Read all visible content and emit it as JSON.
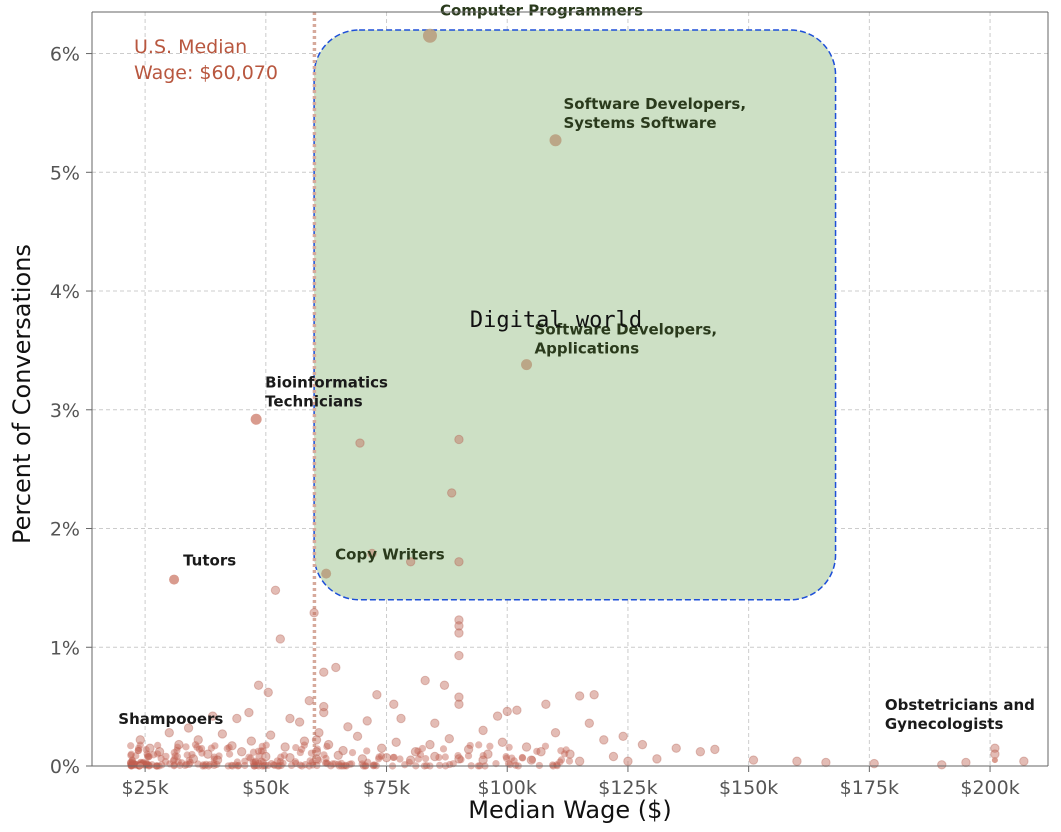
{
  "chart_data": {
    "type": "scatter",
    "xlabel": "Median Wage ($)",
    "ylabel": "Percent of Conversations",
    "xlim": [
      14000,
      212000
    ],
    "ylim": [
      0,
      6.35
    ],
    "x_ticks": [
      25000,
      50000,
      75000,
      100000,
      125000,
      150000,
      175000,
      200000
    ],
    "x_tick_labels": [
      "$25k",
      "$50k",
      "$75k",
      "$100k",
      "$125k",
      "$150k",
      "$175k",
      "$200k"
    ],
    "y_ticks": [
      0,
      1,
      2,
      3,
      4,
      5,
      6
    ],
    "y_tick_labels": [
      "0%",
      "1%",
      "2%",
      "3%",
      "4%",
      "5%",
      "6%"
    ],
    "grid": true,
    "reference_line": {
      "x": 60070,
      "label_line1": "U.S. Median",
      "label_line2": "Wage: $60,070"
    },
    "region": {
      "label": "Digital world",
      "x_range": [
        60000,
        168000
      ],
      "y_range": [
        1.4,
        6.35
      ]
    },
    "labeled_points": [
      {
        "label_lines": [
          "Computer Programmers"
        ],
        "x": 84000,
        "y": 6.15,
        "size": 7
      },
      {
        "label_lines": [
          "Software Developers,",
          "Systems Software"
        ],
        "x": 110000,
        "y": 5.27,
        "size": 6
      },
      {
        "label_lines": [
          "Software Developers,",
          "Applications"
        ],
        "x": 104000,
        "y": 3.38,
        "size": 5.5
      },
      {
        "label_lines": [
          "Bioinformatics",
          "Technicians"
        ],
        "x": 48000,
        "y": 2.92,
        "size": 5.5
      },
      {
        "label_lines": [
          "Copy Writers"
        ],
        "x": 62500,
        "y": 1.62,
        "size": 5
      },
      {
        "label_lines": [
          "Tutors"
        ],
        "x": 31000,
        "y": 1.57,
        "size": 5
      },
      {
        "label_lines": [
          "Shampooers"
        ],
        "x": 24000,
        "y": 0.0,
        "size": 3
      },
      {
        "label_lines": [
          "Obstetricians and",
          "Gynecologists"
        ],
        "x": 201000,
        "y": 0.05,
        "size": 3
      }
    ],
    "points": [
      [
        69500,
        2.72
      ],
      [
        90000,
        2.75
      ],
      [
        88500,
        2.3
      ],
      [
        72000,
        1.79
      ],
      [
        90000,
        1.72
      ],
      [
        80000,
        1.72
      ],
      [
        90000,
        1.23
      ],
      [
        90000,
        1.18
      ],
      [
        90000,
        1.12
      ],
      [
        90000,
        0.93
      ],
      [
        52000,
        1.48
      ],
      [
        53000,
        1.07
      ],
      [
        60000,
        1.29
      ],
      [
        64500,
        0.83
      ],
      [
        62000,
        0.79
      ],
      [
        90000,
        0.58
      ],
      [
        90000,
        0.52
      ],
      [
        83000,
        0.72
      ],
      [
        87000,
        0.68
      ],
      [
        76500,
        0.52
      ],
      [
        73000,
        0.6
      ],
      [
        115000,
        0.59
      ],
      [
        118000,
        0.6
      ],
      [
        108000,
        0.52
      ],
      [
        100000,
        0.46
      ],
      [
        98000,
        0.42
      ],
      [
        102000,
        0.47
      ],
      [
        48500,
        0.68
      ],
      [
        50500,
        0.62
      ],
      [
        46500,
        0.45
      ],
      [
        44000,
        0.4
      ],
      [
        39000,
        0.42
      ],
      [
        55000,
        0.4
      ],
      [
        57000,
        0.37
      ],
      [
        62000,
        0.45
      ],
      [
        67000,
        0.33
      ],
      [
        71000,
        0.38
      ],
      [
        78000,
        0.4
      ],
      [
        85000,
        0.36
      ],
      [
        95000,
        0.3
      ],
      [
        110000,
        0.28
      ],
      [
        117000,
        0.36
      ],
      [
        120000,
        0.22
      ],
      [
        124000,
        0.25
      ],
      [
        128000,
        0.18
      ],
      [
        135000,
        0.15
      ],
      [
        140000,
        0.12
      ],
      [
        143000,
        0.14
      ],
      [
        151000,
        0.05
      ],
      [
        160000,
        0.04
      ],
      [
        166000,
        0.03
      ],
      [
        176000,
        0.02
      ],
      [
        190000,
        0.01
      ],
      [
        195000,
        0.03
      ],
      [
        201000,
        0.15
      ],
      [
        201000,
        0.1
      ],
      [
        207000,
        0.04
      ],
      [
        30000,
        0.28
      ],
      [
        34000,
        0.32
      ],
      [
        36000,
        0.22
      ],
      [
        24000,
        0.22
      ],
      [
        26000,
        0.15
      ],
      [
        28000,
        0.12
      ],
      [
        32000,
        0.18
      ],
      [
        38000,
        0.1
      ],
      [
        41000,
        0.27
      ],
      [
        43000,
        0.17
      ],
      [
        47000,
        0.21
      ],
      [
        51000,
        0.26
      ],
      [
        54000,
        0.16
      ],
      [
        58000,
        0.21
      ],
      [
        61000,
        0.28
      ],
      [
        63000,
        0.18
      ],
      [
        66000,
        0.13
      ],
      [
        69000,
        0.25
      ],
      [
        74000,
        0.15
      ],
      [
        77000,
        0.2
      ],
      [
        81000,
        0.12
      ],
      [
        84000,
        0.18
      ],
      [
        88000,
        0.23
      ],
      [
        92000,
        0.14
      ],
      [
        96000,
        0.1
      ],
      [
        99000,
        0.2
      ],
      [
        104000,
        0.16
      ],
      [
        107000,
        0.12
      ],
      [
        113000,
        0.1
      ],
      [
        122000,
        0.08
      ],
      [
        131000,
        0.06
      ],
      [
        62000,
        0.5
      ],
      [
        59000,
        0.55
      ],
      [
        45000,
        0.12
      ],
      [
        50000,
        0.08
      ],
      [
        35000,
        0.06
      ],
      [
        40000,
        0.05
      ],
      [
        55000,
        0.07
      ],
      [
        65000,
        0.09
      ],
      [
        70000,
        0.06
      ],
      [
        75000,
        0.07
      ],
      [
        80000,
        0.05
      ],
      [
        85000,
        0.08
      ],
      [
        90000,
        0.06
      ],
      [
        95000,
        0.05
      ],
      [
        105000,
        0.05
      ],
      [
        115000,
        0.04
      ],
      [
        125000,
        0.04
      ],
      [
        60500,
        0.22
      ],
      [
        60500,
        0.12
      ],
      [
        60500,
        0.06
      ]
    ]
  }
}
